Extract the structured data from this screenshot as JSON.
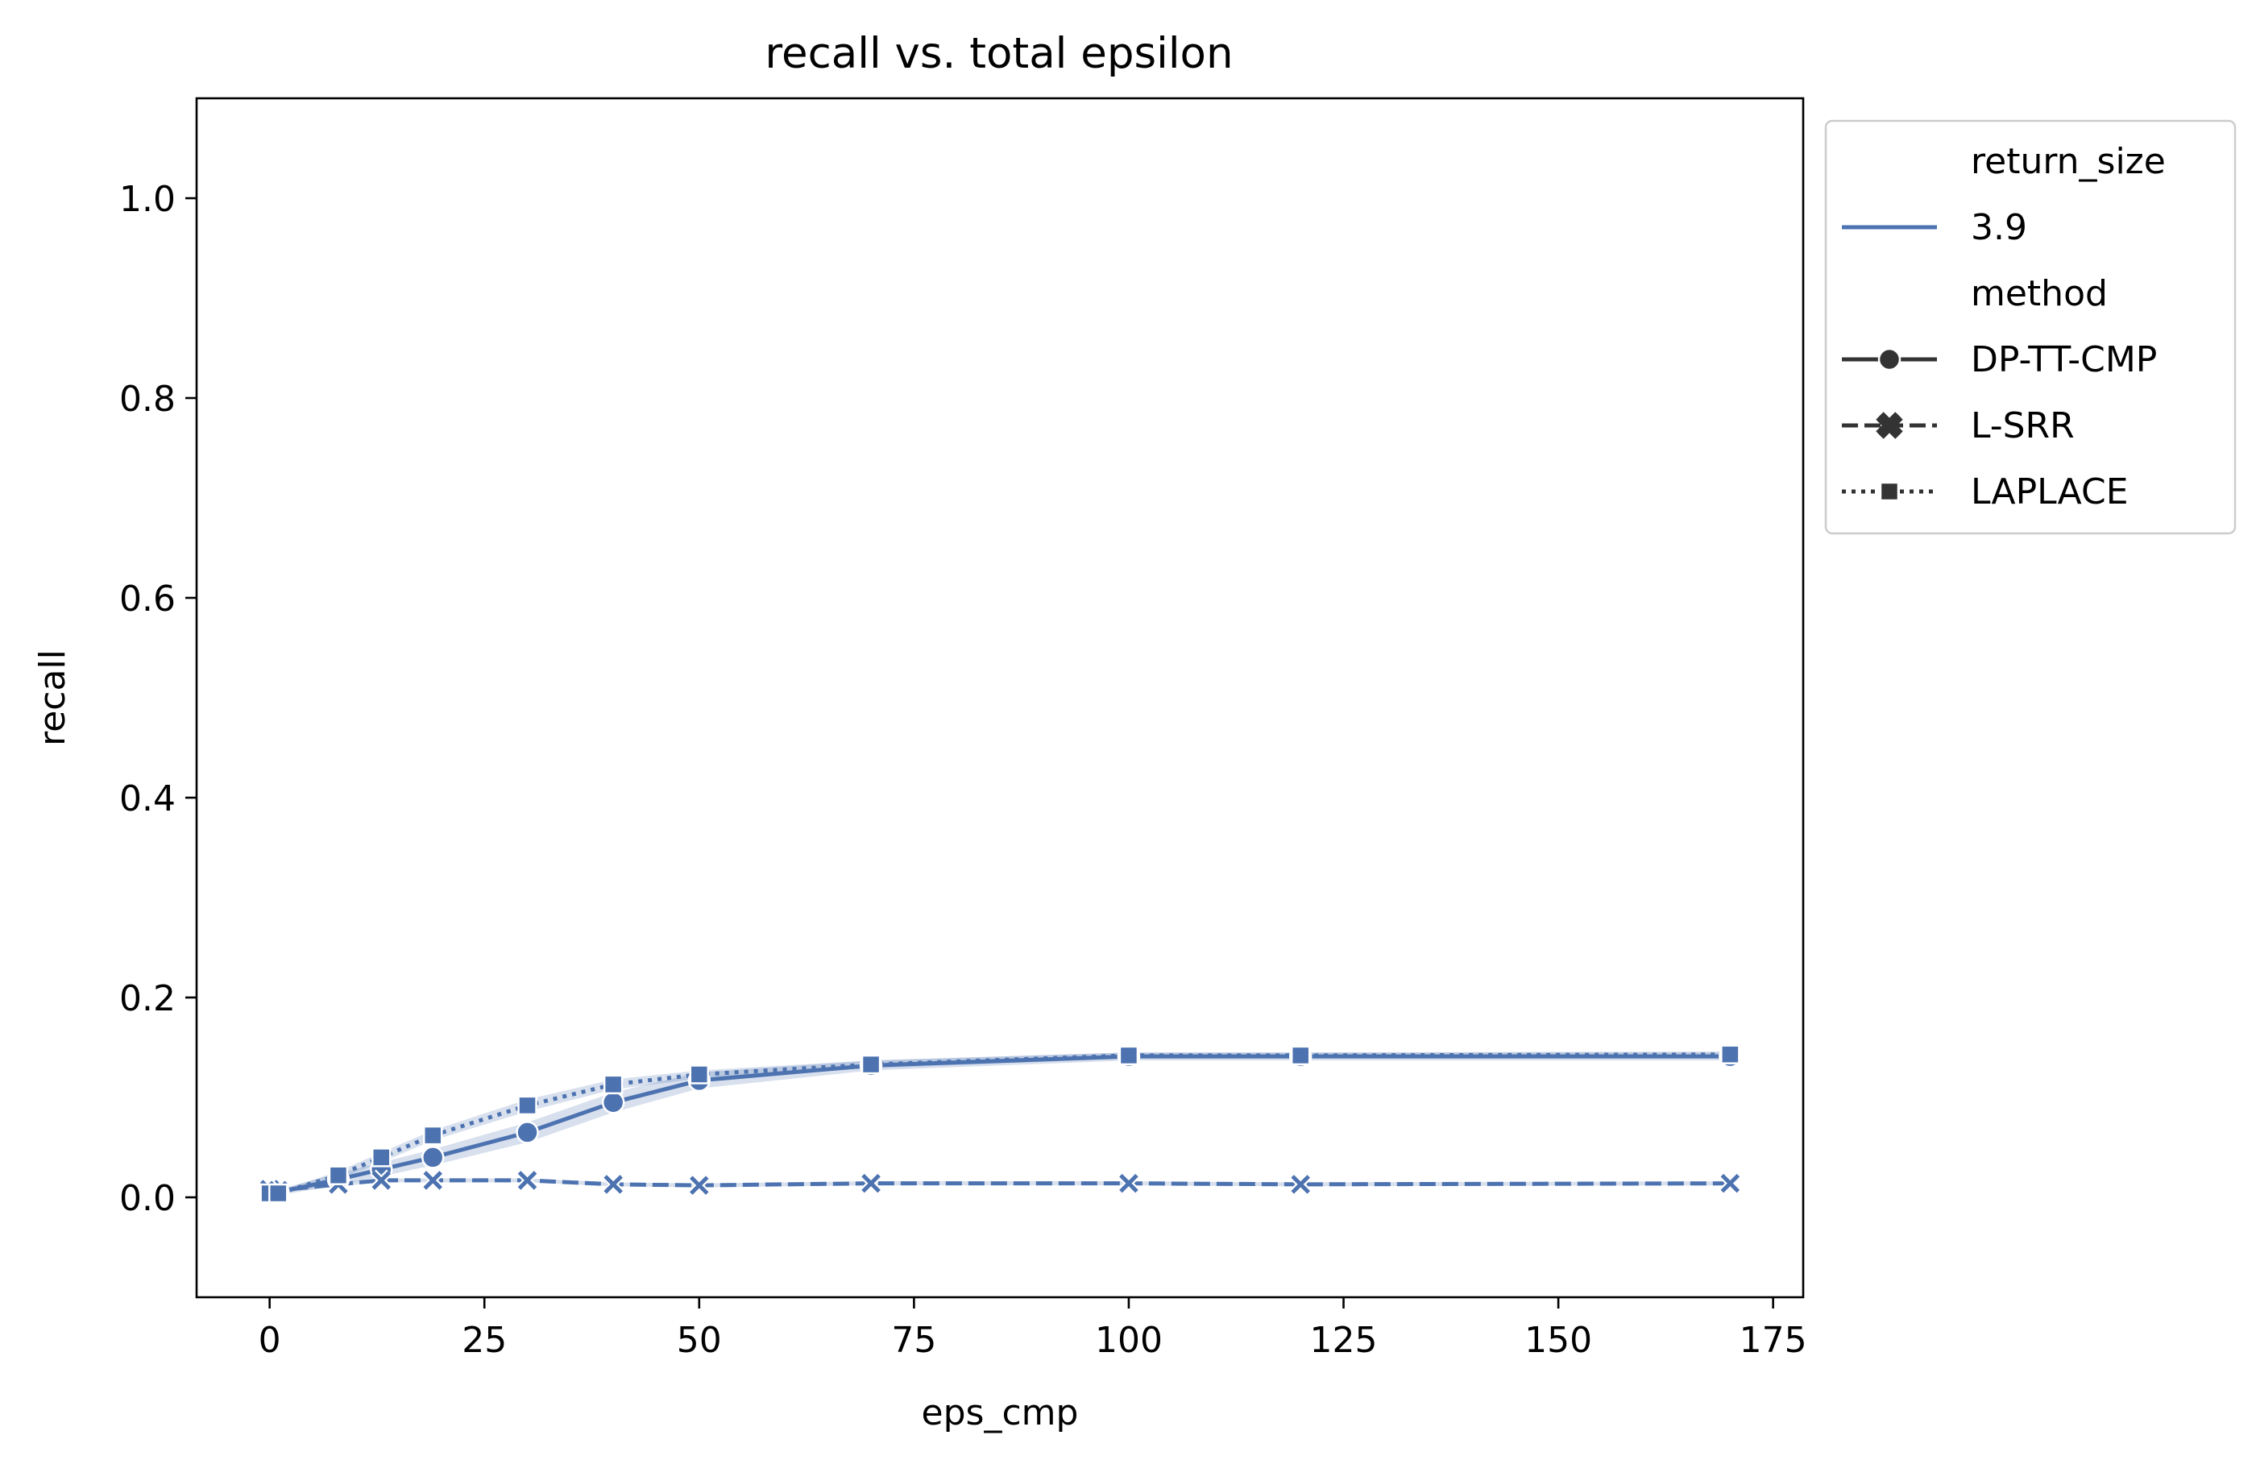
{
  "chart_data": {
    "type": "line",
    "title": "recall vs. total epsilon",
    "xlabel": "eps_cmp",
    "ylabel": "recall",
    "xlim": [
      -8.5,
      178.5
    ],
    "ylim": [
      -0.1,
      1.1
    ],
    "x_ticks": [
      0,
      25,
      50,
      75,
      100,
      125,
      150,
      175
    ],
    "x_tick_labels": [
      "0",
      "25",
      "50",
      "75",
      "100",
      "125",
      "150",
      "175"
    ],
    "y_ticks": [
      0.0,
      0.2,
      0.4,
      0.6,
      0.8,
      1.0
    ],
    "y_tick_labels": [
      "0.0",
      "0.2",
      "0.4",
      "0.6",
      "0.8",
      "1.0"
    ],
    "grid": false,
    "legend_placement": "outside upper right",
    "series_color": "#4c72b0",
    "legend": {
      "groups": [
        {
          "title": "return_size",
          "entries": [
            {
              "label": "3.9",
              "kind": "color",
              "color": "#4c72b0"
            }
          ]
        },
        {
          "title": "method",
          "entries": [
            {
              "label": "DP-TT-CMP",
              "kind": "style",
              "dash": "solid",
              "marker": "circle",
              "color": "#333333"
            },
            {
              "label": "L-SRR",
              "kind": "style",
              "dash": "dashed",
              "marker": "x",
              "color": "#333333"
            },
            {
              "label": "LAPLACE",
              "kind": "style",
              "dash": "dotted",
              "marker": "square",
              "color": "#333333"
            }
          ]
        }
      ]
    },
    "series": [
      {
        "name": "DP-TT-CMP",
        "dash": "solid",
        "marker": "circle",
        "x": [
          0,
          1,
          8,
          13,
          19,
          30,
          40,
          50,
          70,
          100,
          120,
          170
        ],
        "y": [
          0.005,
          0.005,
          0.018,
          0.028,
          0.04,
          0.065,
          0.095,
          0.117,
          0.132,
          0.141,
          0.141,
          0.141
        ],
        "ci_low": [
          0.002,
          0.002,
          0.012,
          0.021,
          0.032,
          0.055,
          0.085,
          0.109,
          0.127,
          0.137,
          0.137,
          0.137
        ],
        "ci_high": [
          0.008,
          0.008,
          0.024,
          0.035,
          0.048,
          0.075,
          0.105,
          0.125,
          0.137,
          0.145,
          0.145,
          0.145
        ]
      },
      {
        "name": "L-SRR",
        "dash": "dashed",
        "marker": "x",
        "x": [
          0,
          1,
          8,
          13,
          19,
          30,
          40,
          50,
          70,
          100,
          120,
          170
        ],
        "y": [
          0.008,
          0.007,
          0.013,
          0.017,
          0.017,
          0.017,
          0.013,
          0.012,
          0.014,
          0.014,
          0.013,
          0.014
        ],
        "ci_low": [
          0.006,
          0.005,
          0.011,
          0.015,
          0.015,
          0.015,
          0.011,
          0.01,
          0.012,
          0.012,
          0.011,
          0.012
        ],
        "ci_high": [
          0.01,
          0.009,
          0.015,
          0.019,
          0.019,
          0.019,
          0.015,
          0.014,
          0.016,
          0.016,
          0.015,
          0.016
        ]
      },
      {
        "name": "LAPLACE",
        "dash": "dotted",
        "marker": "square",
        "x": [
          0,
          1,
          8,
          13,
          19,
          30,
          40,
          50,
          70,
          100,
          120,
          170
        ],
        "y": [
          0.004,
          0.004,
          0.022,
          0.04,
          0.062,
          0.092,
          0.113,
          0.123,
          0.133,
          0.142,
          0.142,
          0.143
        ],
        "ci_low": [
          0.002,
          0.002,
          0.018,
          0.035,
          0.057,
          0.086,
          0.108,
          0.119,
          0.129,
          0.139,
          0.139,
          0.14
        ],
        "ci_high": [
          0.006,
          0.006,
          0.026,
          0.045,
          0.067,
          0.098,
          0.118,
          0.127,
          0.137,
          0.145,
          0.145,
          0.146
        ]
      }
    ]
  }
}
